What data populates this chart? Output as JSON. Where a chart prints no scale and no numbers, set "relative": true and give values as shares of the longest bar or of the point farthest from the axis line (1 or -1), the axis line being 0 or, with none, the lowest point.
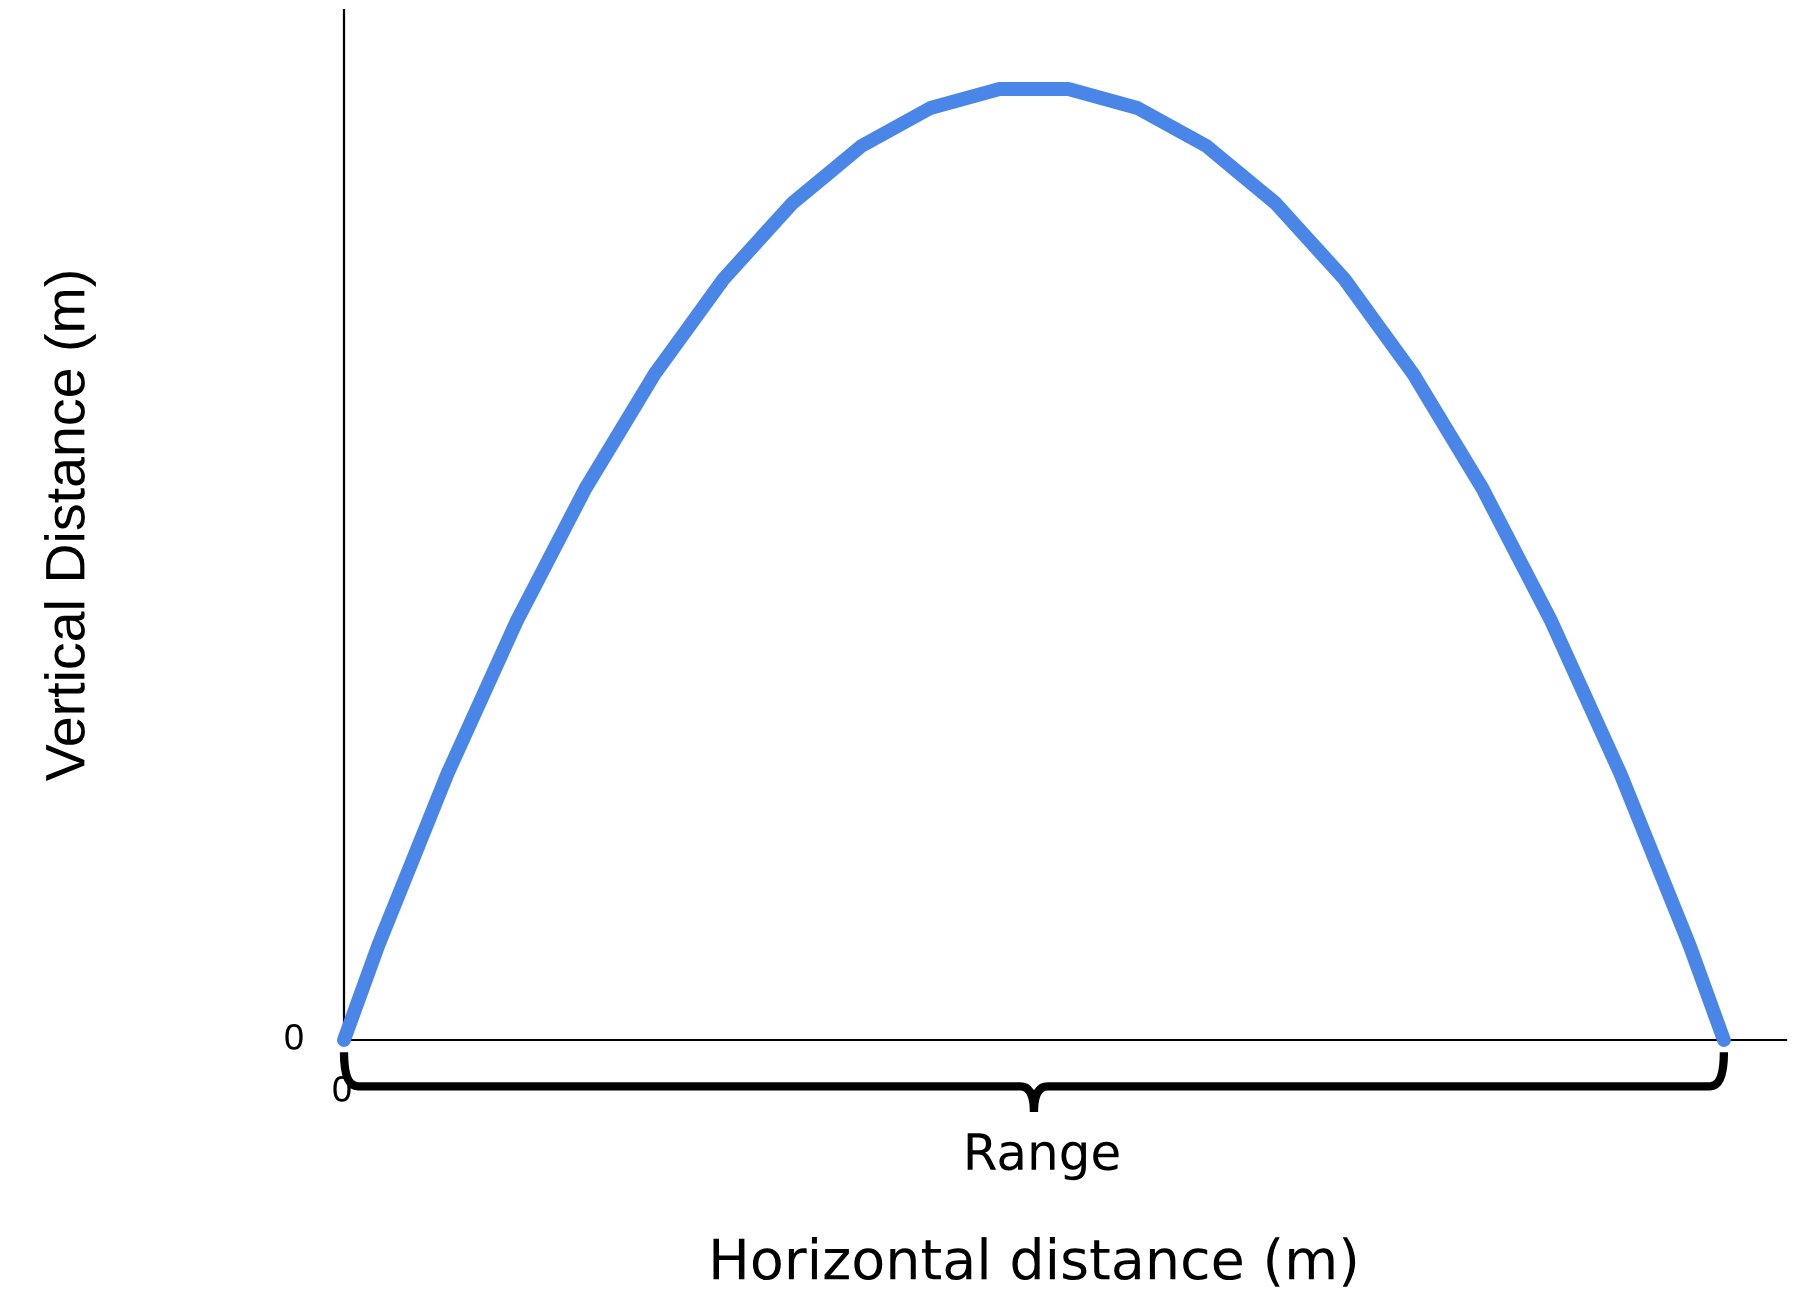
{
  "chart_data": {
    "type": "line",
    "relative": true,
    "xlabel": "Horizontal distance (m)",
    "ylabel": "Vertical Distance (m)",
    "categories": [
      null,
      null,
      null,
      null,
      null,
      null,
      null,
      null,
      null,
      null,
      null,
      null,
      null,
      null,
      null,
      null,
      null,
      null,
      null,
      null,
      null,
      null,
      null,
      null,
      null,
      null,
      null,
      null,
      null,
      null,
      null,
      null,
      null,
      null,
      null,
      null,
      null,
      null,
      null,
      null,
      null
    ],
    "series": [
      {
        "color": "#4a86e8",
        "values": [
          0,
          0.1,
          0.19,
          0.28,
          0.36,
          0.44,
          0.51,
          0.58,
          0.64,
          0.7,
          0.75,
          0.8,
          0.84,
          0.88,
          0.91,
          0.94,
          0.96,
          0.98,
          0.99,
          1,
          1,
          1,
          0.99,
          0.98,
          0.96,
          0.94,
          0.91,
          0.88,
          0.84,
          0.8,
          0.75,
          0.7,
          0.64,
          0.58,
          0.51,
          0.44,
          0.36,
          0.28,
          0.19,
          0.1,
          0
        ]
      }
    ],
    "annotations": [
      "0",
      "0",
      "Range"
    ]
  }
}
